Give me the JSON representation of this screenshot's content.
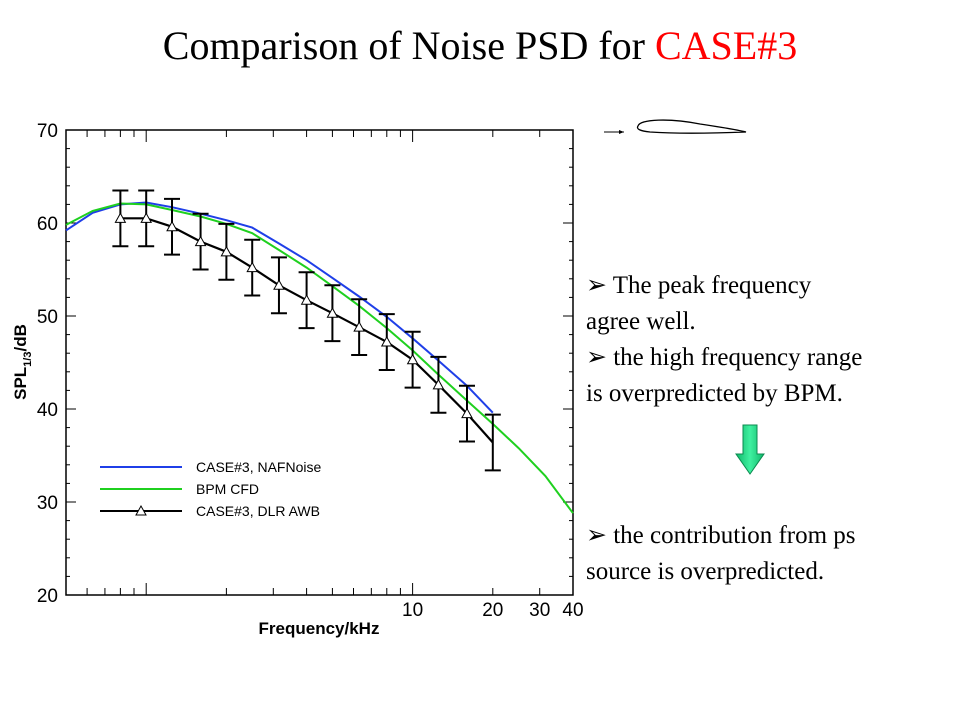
{
  "title": {
    "main": "Comparison of Noise PSD for ",
    "highlight": "CASE#3"
  },
  "bullets": [
    {
      "marker": "➢",
      "line1": "  The peak frequency",
      "line2": "agree well."
    },
    {
      "marker": "➢",
      "line1": " the high frequency range",
      "line2": "is overpredicted by BPM."
    },
    {
      "marker": "➢",
      "line1": " the contribution from ps",
      "line2": "source is overpredicted."
    }
  ],
  "colors": {
    "title_accent": "#ff0000",
    "arrow": "#22e28a",
    "nafnoise": "#1f3fe8",
    "bpm": "#1fd01f",
    "dlr": "#000000"
  },
  "chart_data": {
    "type": "line",
    "xlabel": "Frequency/kHz",
    "ylabel": "SPL1/3/dB",
    "xscale": "log",
    "xlim": [
      0.5,
      40
    ],
    "ylim": [
      20,
      70
    ],
    "yticks": [
      20,
      30,
      40,
      50,
      60,
      70
    ],
    "xticklabels": [
      "10",
      "20",
      "30",
      "40"
    ],
    "legend": "lower-left",
    "series": [
      {
        "name": "CASE#3, NAFNoise",
        "color": "#1f3fe8",
        "x": [
          0.5,
          0.63,
          0.8,
          1.0,
          1.25,
          1.6,
          2.0,
          2.5,
          3.15,
          4.0,
          5.0,
          6.3,
          8.0,
          10.0,
          12.5,
          16.0,
          20.0
        ],
        "y": [
          59.2,
          61.1,
          62.0,
          62.2,
          61.7,
          61.0,
          60.3,
          59.5,
          57.8,
          56.0,
          54.1,
          52.1,
          49.9,
          47.6,
          45.2,
          42.5,
          39.6
        ]
      },
      {
        "name": "BPM CFD",
        "color": "#1fd01f",
        "x": [
          0.5,
          0.63,
          0.8,
          1.0,
          1.25,
          1.6,
          2.0,
          2.5,
          3.15,
          4.0,
          5.0,
          6.3,
          8.0,
          10.0,
          12.5,
          16.0,
          20.0,
          25.0,
          31.5,
          40.0
        ],
        "y": [
          59.8,
          61.3,
          62.1,
          62.0,
          61.4,
          60.7,
          59.9,
          58.9,
          57.1,
          55.2,
          53.2,
          51.1,
          48.7,
          46.3,
          43.7,
          40.9,
          38.4,
          35.8,
          32.8,
          28.8
        ]
      },
      {
        "name": "CASE#3, DLR AWB",
        "color": "#000000",
        "x": [
          0.8,
          1.0,
          1.25,
          1.6,
          2.0,
          2.5,
          3.15,
          4.0,
          5.0,
          6.3,
          8.0,
          10.0,
          12.5,
          16.0,
          20.0
        ],
        "y": [
          60.5,
          60.5,
          59.6,
          58.0,
          56.9,
          55.2,
          53.3,
          51.7,
          50.3,
          48.8,
          47.2,
          45.3,
          42.6,
          39.5,
          36.4
        ],
        "error": [
          3.0,
          3.0,
          3.0,
          3.0,
          3.0,
          3.0,
          3.0,
          3.0,
          3.0,
          3.0,
          3.0,
          3.0,
          3.0,
          3.0,
          3.0
        ]
      }
    ]
  }
}
